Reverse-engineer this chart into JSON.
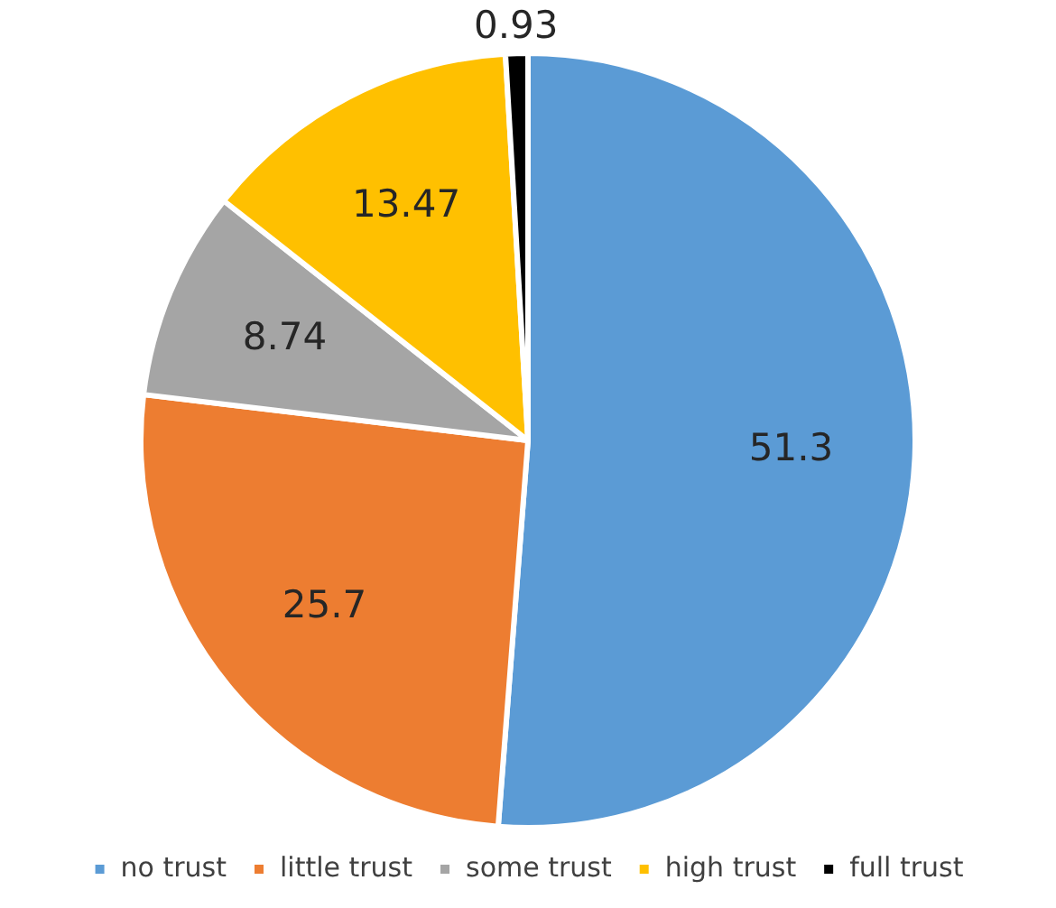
{
  "chart_data": {
    "type": "pie",
    "categories": [
      "no trust",
      "little trust",
      "some trust",
      "high trust",
      "full trust"
    ],
    "values": [
      51.3,
      25.7,
      8.74,
      13.47,
      0.93
    ],
    "colors": [
      "#5b9bd5",
      "#ed7d31",
      "#a5a5a5",
      "#ffc000",
      "#000000"
    ],
    "data_labels": true,
    "legend": "bottom"
  }
}
